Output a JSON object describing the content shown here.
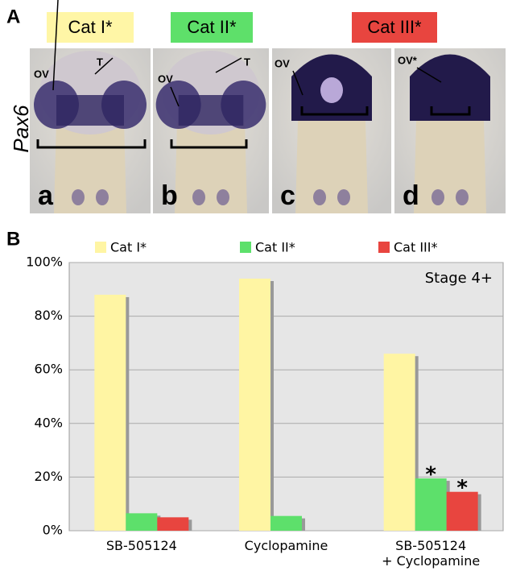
{
  "panel_a": {
    "label": "A",
    "row_label": "Pax6",
    "categories": [
      "Cat I*",
      "Cat II*",
      "Cat III*"
    ],
    "panels": [
      {
        "letter": "a",
        "labels": [
          "OV",
          "T"
        ]
      },
      {
        "letter": "b",
        "labels": [
          "OV",
          "T"
        ]
      },
      {
        "letter": "c",
        "labels": [
          "OV"
        ]
      },
      {
        "letter": "d",
        "labels": [
          "OV*"
        ]
      }
    ]
  },
  "chart_data": {
    "type": "bar",
    "panel_label": "B",
    "categories": [
      "SB-505124",
      "Cyclopamine",
      "SB-505124\n+ Cyclopamine"
    ],
    "series": [
      {
        "name": "Cat I*",
        "color": "#fff5a3",
        "values": [
          88,
          94,
          66
        ]
      },
      {
        "name": "Cat II*",
        "color": "#5de06b",
        "values": [
          6.5,
          5.5,
          19.5
        ]
      },
      {
        "name": "Cat III*",
        "color": "#e8453f",
        "values": [
          5,
          null,
          14.5
        ]
      }
    ],
    "annotations": [
      "Stage 4+",
      "*",
      "*"
    ],
    "ylim": [
      0,
      100
    ],
    "yticks": [
      {
        "value": 0,
        "label": "0%"
      },
      {
        "value": 20,
        "label": "20%"
      },
      {
        "value": 40,
        "label": "40%"
      },
      {
        "value": 60,
        "label": "60%"
      },
      {
        "value": 80,
        "label": "80%"
      },
      {
        "value": 100,
        "label": "100%"
      }
    ],
    "grid": true
  }
}
